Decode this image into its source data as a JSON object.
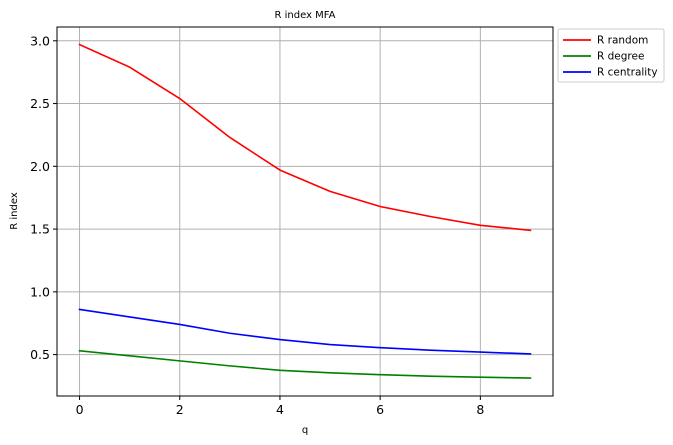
{
  "chart_data": {
    "type": "line",
    "title": "R index MFA",
    "xlabel": "q",
    "ylabel": "R index",
    "x": [
      0,
      1,
      2,
      3,
      4,
      5,
      6,
      7,
      8,
      9
    ],
    "xlim": [
      -0.45,
      9.45
    ],
    "ylim": [
      0.17,
      3.11
    ],
    "xticks": [
      0,
      2,
      4,
      6,
      8
    ],
    "yticks": [
      0.5,
      1.0,
      1.5,
      2.0,
      2.5,
      3.0
    ],
    "xtick_labels": [
      "0",
      "2",
      "4",
      "6",
      "8"
    ],
    "ytick_labels": [
      "0.5",
      "1.0",
      "1.5",
      "2.0",
      "2.5",
      "3.0"
    ],
    "grid": true,
    "legend_position": "outside-top-right",
    "series": [
      {
        "name": "R random",
        "color": "#ff0000",
        "values": [
          2.97,
          2.79,
          2.54,
          2.23,
          1.97,
          1.8,
          1.68,
          1.6,
          1.53,
          1.49
        ]
      },
      {
        "name": "R degree",
        "color": "#008000",
        "values": [
          0.53,
          0.49,
          0.45,
          0.41,
          0.375,
          0.355,
          0.34,
          0.328,
          0.32,
          0.313
        ]
      },
      {
        "name": "R centrality",
        "color": "#0000ff",
        "values": [
          0.86,
          0.8,
          0.74,
          0.67,
          0.62,
          0.58,
          0.555,
          0.535,
          0.52,
          0.505
        ]
      }
    ]
  }
}
